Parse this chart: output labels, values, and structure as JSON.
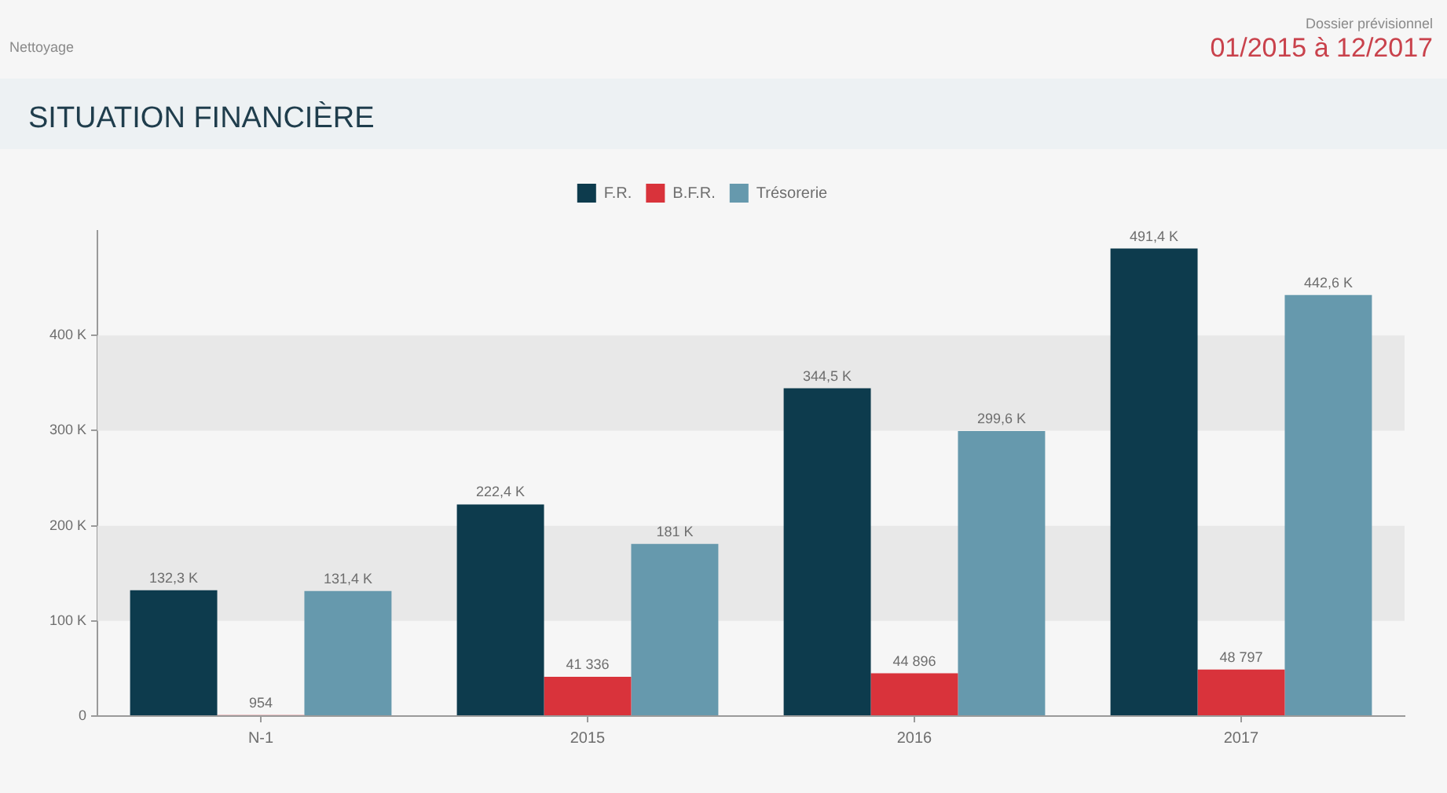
{
  "chart_data": {
    "type": "bar",
    "title": "SITUATION FINANCIÈRE",
    "annotations": [
      "Nettoyage",
      "Dossier prévisionnel",
      "01/2015 à 12/2017"
    ],
    "categories": [
      "N-1",
      "2015",
      "2016",
      "2017"
    ],
    "series": [
      {
        "name": "F.R.",
        "color": "#0d3b4d",
        "values": [
          132300,
          222400,
          344500,
          491400
        ],
        "value_labels": [
          "132,3 K",
          "222,4 K",
          "344,5 K",
          "491,4 K"
        ]
      },
      {
        "name": "B.F.R.",
        "color": "#d9333b",
        "values": [
          954,
          41336,
          44896,
          48797
        ],
        "value_labels": [
          "954",
          "41 336",
          "44 896",
          "48 797"
        ]
      },
      {
        "name": "Trésorerie",
        "color": "#6699ad",
        "values": [
          131400,
          181000,
          299600,
          442600
        ],
        "value_labels": [
          "131,4 K",
          "181 K",
          "299,6 K",
          "442,6 K"
        ]
      }
    ],
    "ylim": [
      0,
      510000
    ],
    "yticks": [
      0,
      {
        "value": 100000,
        "label": "100 K"
      },
      {
        "value": 200000,
        "label": "200 K"
      },
      {
        "value": 300000,
        "label": "300 K"
      },
      {
        "value": 400000,
        "label": "400 K"
      }
    ],
    "bands": [
      {
        "axis": "y",
        "from": 100000,
        "to": 200000,
        "color": "#e8e8e8"
      },
      {
        "axis": "y",
        "from": 300000,
        "to": 400000,
        "color": "#e8e8e8"
      }
    ],
    "legend": "top"
  }
}
